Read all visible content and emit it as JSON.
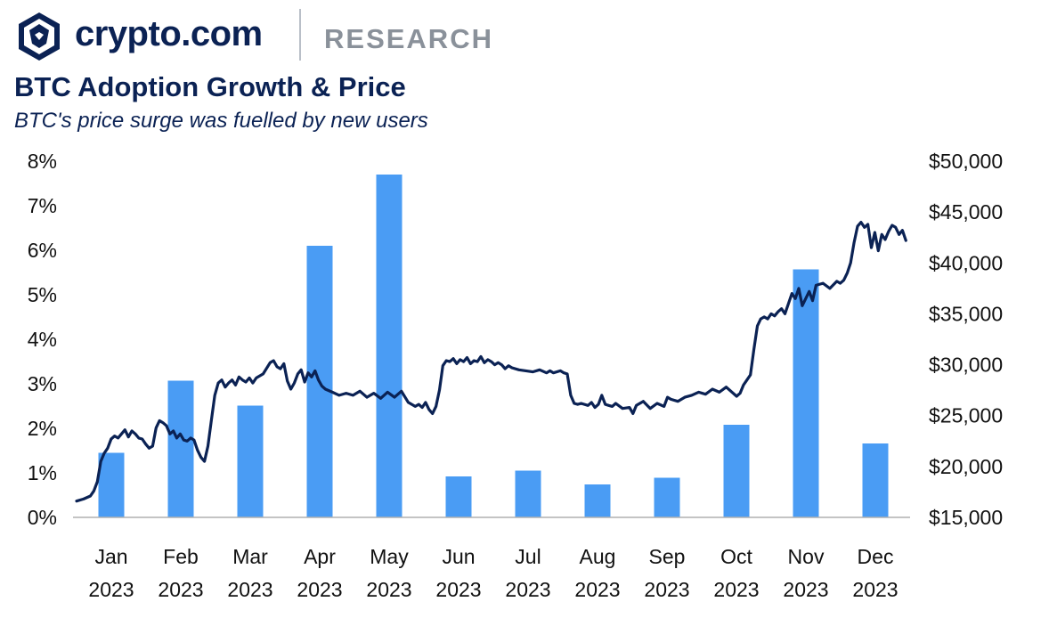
{
  "header": {
    "brand": "crypto.com",
    "section": "RESEARCH",
    "logo_icon": "crypto-com-lion-shield-icon"
  },
  "colors": {
    "navy": "#0b2254",
    "bar_blue": "#4a9cf4",
    "gray": "#8a919a"
  },
  "chart_data": {
    "type": "bar+line",
    "title": "BTC Adoption Growth & Price",
    "subtitle": "BTC's price surge was fuelled by new users",
    "categories": [
      [
        "Jan",
        "2023"
      ],
      [
        "Feb",
        "2023"
      ],
      [
        "Mar",
        "2023"
      ],
      [
        "Apr",
        "2023"
      ],
      [
        "May",
        "2023"
      ],
      [
        "Jun",
        "2023"
      ],
      [
        "Jul",
        "2023"
      ],
      [
        "Aug",
        "2023"
      ],
      [
        "Sep",
        "2023"
      ],
      [
        "Oct",
        "2023"
      ],
      [
        "Nov",
        "2023"
      ],
      [
        "Dec",
        "2023"
      ]
    ],
    "bar_series": {
      "name": "BTC adoption growth (%)",
      "axis": "left",
      "values": [
        1.45,
        3.07,
        2.51,
        6.1,
        7.7,
        0.92,
        1.05,
        0.74,
        0.89,
        2.08,
        5.57,
        1.66
      ]
    },
    "line_series": {
      "name": "BTC price (USD)",
      "axis": "right",
      "points": [
        [
          0.0,
          16600
        ],
        [
          0.1,
          16800
        ],
        [
          0.2,
          17100
        ],
        [
          0.25,
          17600
        ],
        [
          0.3,
          18500
        ],
        [
          0.35,
          20500
        ],
        [
          0.4,
          21300
        ],
        [
          0.45,
          21800
        ],
        [
          0.5,
          22700
        ],
        [
          0.55,
          23000
        ],
        [
          0.6,
          22800
        ],
        [
          0.65,
          23200
        ],
        [
          0.7,
          23600
        ],
        [
          0.75,
          22900
        ],
        [
          0.8,
          23500
        ],
        [
          0.85,
          23200
        ],
        [
          0.9,
          22800
        ],
        [
          0.95,
          22700
        ],
        [
          1.0,
          22200
        ],
        [
          1.05,
          21800
        ],
        [
          1.1,
          22000
        ],
        [
          1.15,
          23800
        ],
        [
          1.2,
          24500
        ],
        [
          1.25,
          24300
        ],
        [
          1.3,
          24000
        ],
        [
          1.35,
          23200
        ],
        [
          1.4,
          23500
        ],
        [
          1.45,
          22800
        ],
        [
          1.5,
          23200
        ],
        [
          1.55,
          22600
        ],
        [
          1.6,
          22500
        ],
        [
          1.65,
          22800
        ],
        [
          1.7,
          22600
        ],
        [
          1.75,
          21600
        ],
        [
          1.8,
          20900
        ],
        [
          1.85,
          20500
        ],
        [
          1.9,
          22000
        ],
        [
          1.95,
          24500
        ],
        [
          2.0,
          27000
        ],
        [
          2.05,
          28200
        ],
        [
          2.1,
          28500
        ],
        [
          2.15,
          27800
        ],
        [
          2.2,
          28200
        ],
        [
          2.25,
          28500
        ],
        [
          2.3,
          28000
        ],
        [
          2.35,
          28800
        ],
        [
          2.4,
          28500
        ],
        [
          2.45,
          28300
        ],
        [
          2.5,
          28700
        ],
        [
          2.55,
          28200
        ],
        [
          2.6,
          28700
        ],
        [
          2.7,
          29100
        ],
        [
          2.8,
          30200
        ],
        [
          2.85,
          30400
        ],
        [
          2.9,
          29800
        ],
        [
          2.95,
          29600
        ],
        [
          3.0,
          30100
        ],
        [
          3.05,
          28400
        ],
        [
          3.1,
          27600
        ],
        [
          3.15,
          28200
        ],
        [
          3.2,
          29100
        ],
        [
          3.25,
          29500
        ],
        [
          3.3,
          28300
        ],
        [
          3.35,
          29200
        ],
        [
          3.4,
          28800
        ],
        [
          3.45,
          29400
        ],
        [
          3.5,
          28500
        ],
        [
          3.55,
          27900
        ],
        [
          3.6,
          27600
        ],
        [
          3.7,
          27300
        ],
        [
          3.8,
          27000
        ],
        [
          3.9,
          27200
        ],
        [
          4.0,
          27000
        ],
        [
          4.1,
          27400
        ],
        [
          4.2,
          26800
        ],
        [
          4.3,
          27200
        ],
        [
          4.4,
          26700
        ],
        [
          4.5,
          27300
        ],
        [
          4.6,
          26800
        ],
        [
          4.7,
          27400
        ],
        [
          4.8,
          26300
        ],
        [
          4.9,
          25900
        ],
        [
          4.95,
          26100
        ],
        [
          5.0,
          25800
        ],
        [
          5.05,
          26300
        ],
        [
          5.1,
          25600
        ],
        [
          5.15,
          25200
        ],
        [
          5.2,
          25900
        ],
        [
          5.25,
          27500
        ],
        [
          5.3,
          29900
        ],
        [
          5.35,
          30400
        ],
        [
          5.4,
          30300
        ],
        [
          5.45,
          30600
        ],
        [
          5.5,
          30100
        ],
        [
          5.55,
          30500
        ],
        [
          5.6,
          30300
        ],
        [
          5.65,
          30700
        ],
        [
          5.7,
          30100
        ],
        [
          5.75,
          30400
        ],
        [
          5.8,
          30300
        ],
        [
          5.85,
          30800
        ],
        [
          5.9,
          30200
        ],
        [
          5.95,
          30500
        ],
        [
          6.0,
          30300
        ],
        [
          6.05,
          30000
        ],
        [
          6.1,
          30200
        ],
        [
          6.15,
          30000
        ],
        [
          6.2,
          29600
        ],
        [
          6.25,
          29900
        ],
        [
          6.3,
          29700
        ],
        [
          6.4,
          29500
        ],
        [
          6.5,
          29400
        ],
        [
          6.6,
          29300
        ],
        [
          6.7,
          29500
        ],
        [
          6.8,
          29200
        ],
        [
          6.85,
          29400
        ],
        [
          6.9,
          29200
        ],
        [
          7.0,
          29400
        ],
        [
          7.05,
          29200
        ],
        [
          7.1,
          29100
        ],
        [
          7.15,
          27000
        ],
        [
          7.2,
          26200
        ],
        [
          7.25,
          26100
        ],
        [
          7.3,
          26200
        ],
        [
          7.4,
          26000
        ],
        [
          7.45,
          26300
        ],
        [
          7.5,
          25800
        ],
        [
          7.55,
          26100
        ],
        [
          7.6,
          27000
        ],
        [
          7.65,
          26100
        ],
        [
          7.7,
          26000
        ],
        [
          7.75,
          25900
        ],
        [
          7.8,
          26200
        ],
        [
          7.9,
          25700
        ],
        [
          8.0,
          25800
        ],
        [
          8.05,
          25200
        ],
        [
          8.1,
          26000
        ],
        [
          8.2,
          26400
        ],
        [
          8.3,
          25700
        ],
        [
          8.4,
          26200
        ],
        [
          8.5,
          25900
        ],
        [
          8.55,
          26800
        ],
        [
          8.6,
          26600
        ],
        [
          8.7,
          26400
        ],
        [
          8.8,
          26800
        ],
        [
          8.9,
          27000
        ],
        [
          9.0,
          27300
        ],
        [
          9.1,
          27100
        ],
        [
          9.2,
          27600
        ],
        [
          9.3,
          27300
        ],
        [
          9.4,
          27800
        ],
        [
          9.5,
          27200
        ],
        [
          9.55,
          26900
        ],
        [
          9.6,
          27200
        ],
        [
          9.65,
          28000
        ],
        [
          9.7,
          28500
        ],
        [
          9.75,
          29000
        ],
        [
          9.8,
          31500
        ],
        [
          9.85,
          33800
        ],
        [
          9.9,
          34500
        ],
        [
          9.95,
          34700
        ],
        [
          10.0,
          34500
        ],
        [
          10.05,
          35000
        ],
        [
          10.1,
          34800
        ],
        [
          10.15,
          35200
        ],
        [
          10.2,
          35500
        ],
        [
          10.25,
          35000
        ],
        [
          10.3,
          36000
        ],
        [
          10.35,
          37000
        ],
        [
          10.4,
          36500
        ],
        [
          10.45,
          37500
        ],
        [
          10.5,
          35800
        ],
        [
          10.55,
          36500
        ],
        [
          10.6,
          37200
        ],
        [
          10.65,
          36300
        ],
        [
          10.7,
          37800
        ],
        [
          10.8,
          38000
        ],
        [
          10.9,
          37500
        ],
        [
          11.0,
          38200
        ],
        [
          11.05,
          38000
        ],
        [
          11.1,
          38300
        ],
        [
          11.15,
          39000
        ],
        [
          11.2,
          40000
        ],
        [
          11.25,
          42000
        ],
        [
          11.3,
          43600
        ],
        [
          11.35,
          44000
        ],
        [
          11.4,
          43500
        ],
        [
          11.45,
          43800
        ],
        [
          11.5,
          41500
        ],
        [
          11.55,
          43000
        ],
        [
          11.6,
          41200
        ],
        [
          11.65,
          42800
        ],
        [
          11.7,
          42300
        ],
        [
          11.75,
          43100
        ],
        [
          11.8,
          43700
        ],
        [
          11.85,
          43500
        ],
        [
          11.9,
          42800
        ],
        [
          11.95,
          43200
        ],
        [
          12.0,
          42200
        ]
      ]
    },
    "y_left": {
      "min": 0,
      "max": 8,
      "step": 1,
      "labels": [
        "0%",
        "1%",
        "2%",
        "3%",
        "4%",
        "5%",
        "6%",
        "7%",
        "8%"
      ]
    },
    "y_right": {
      "min": 15000,
      "max": 50000,
      "step": 5000,
      "labels": [
        "$15,000",
        "$20,000",
        "$25,000",
        "$30,000",
        "$35,000",
        "$40,000",
        "$45,000",
        "$50,000"
      ]
    },
    "grid": false,
    "legend": "none"
  }
}
